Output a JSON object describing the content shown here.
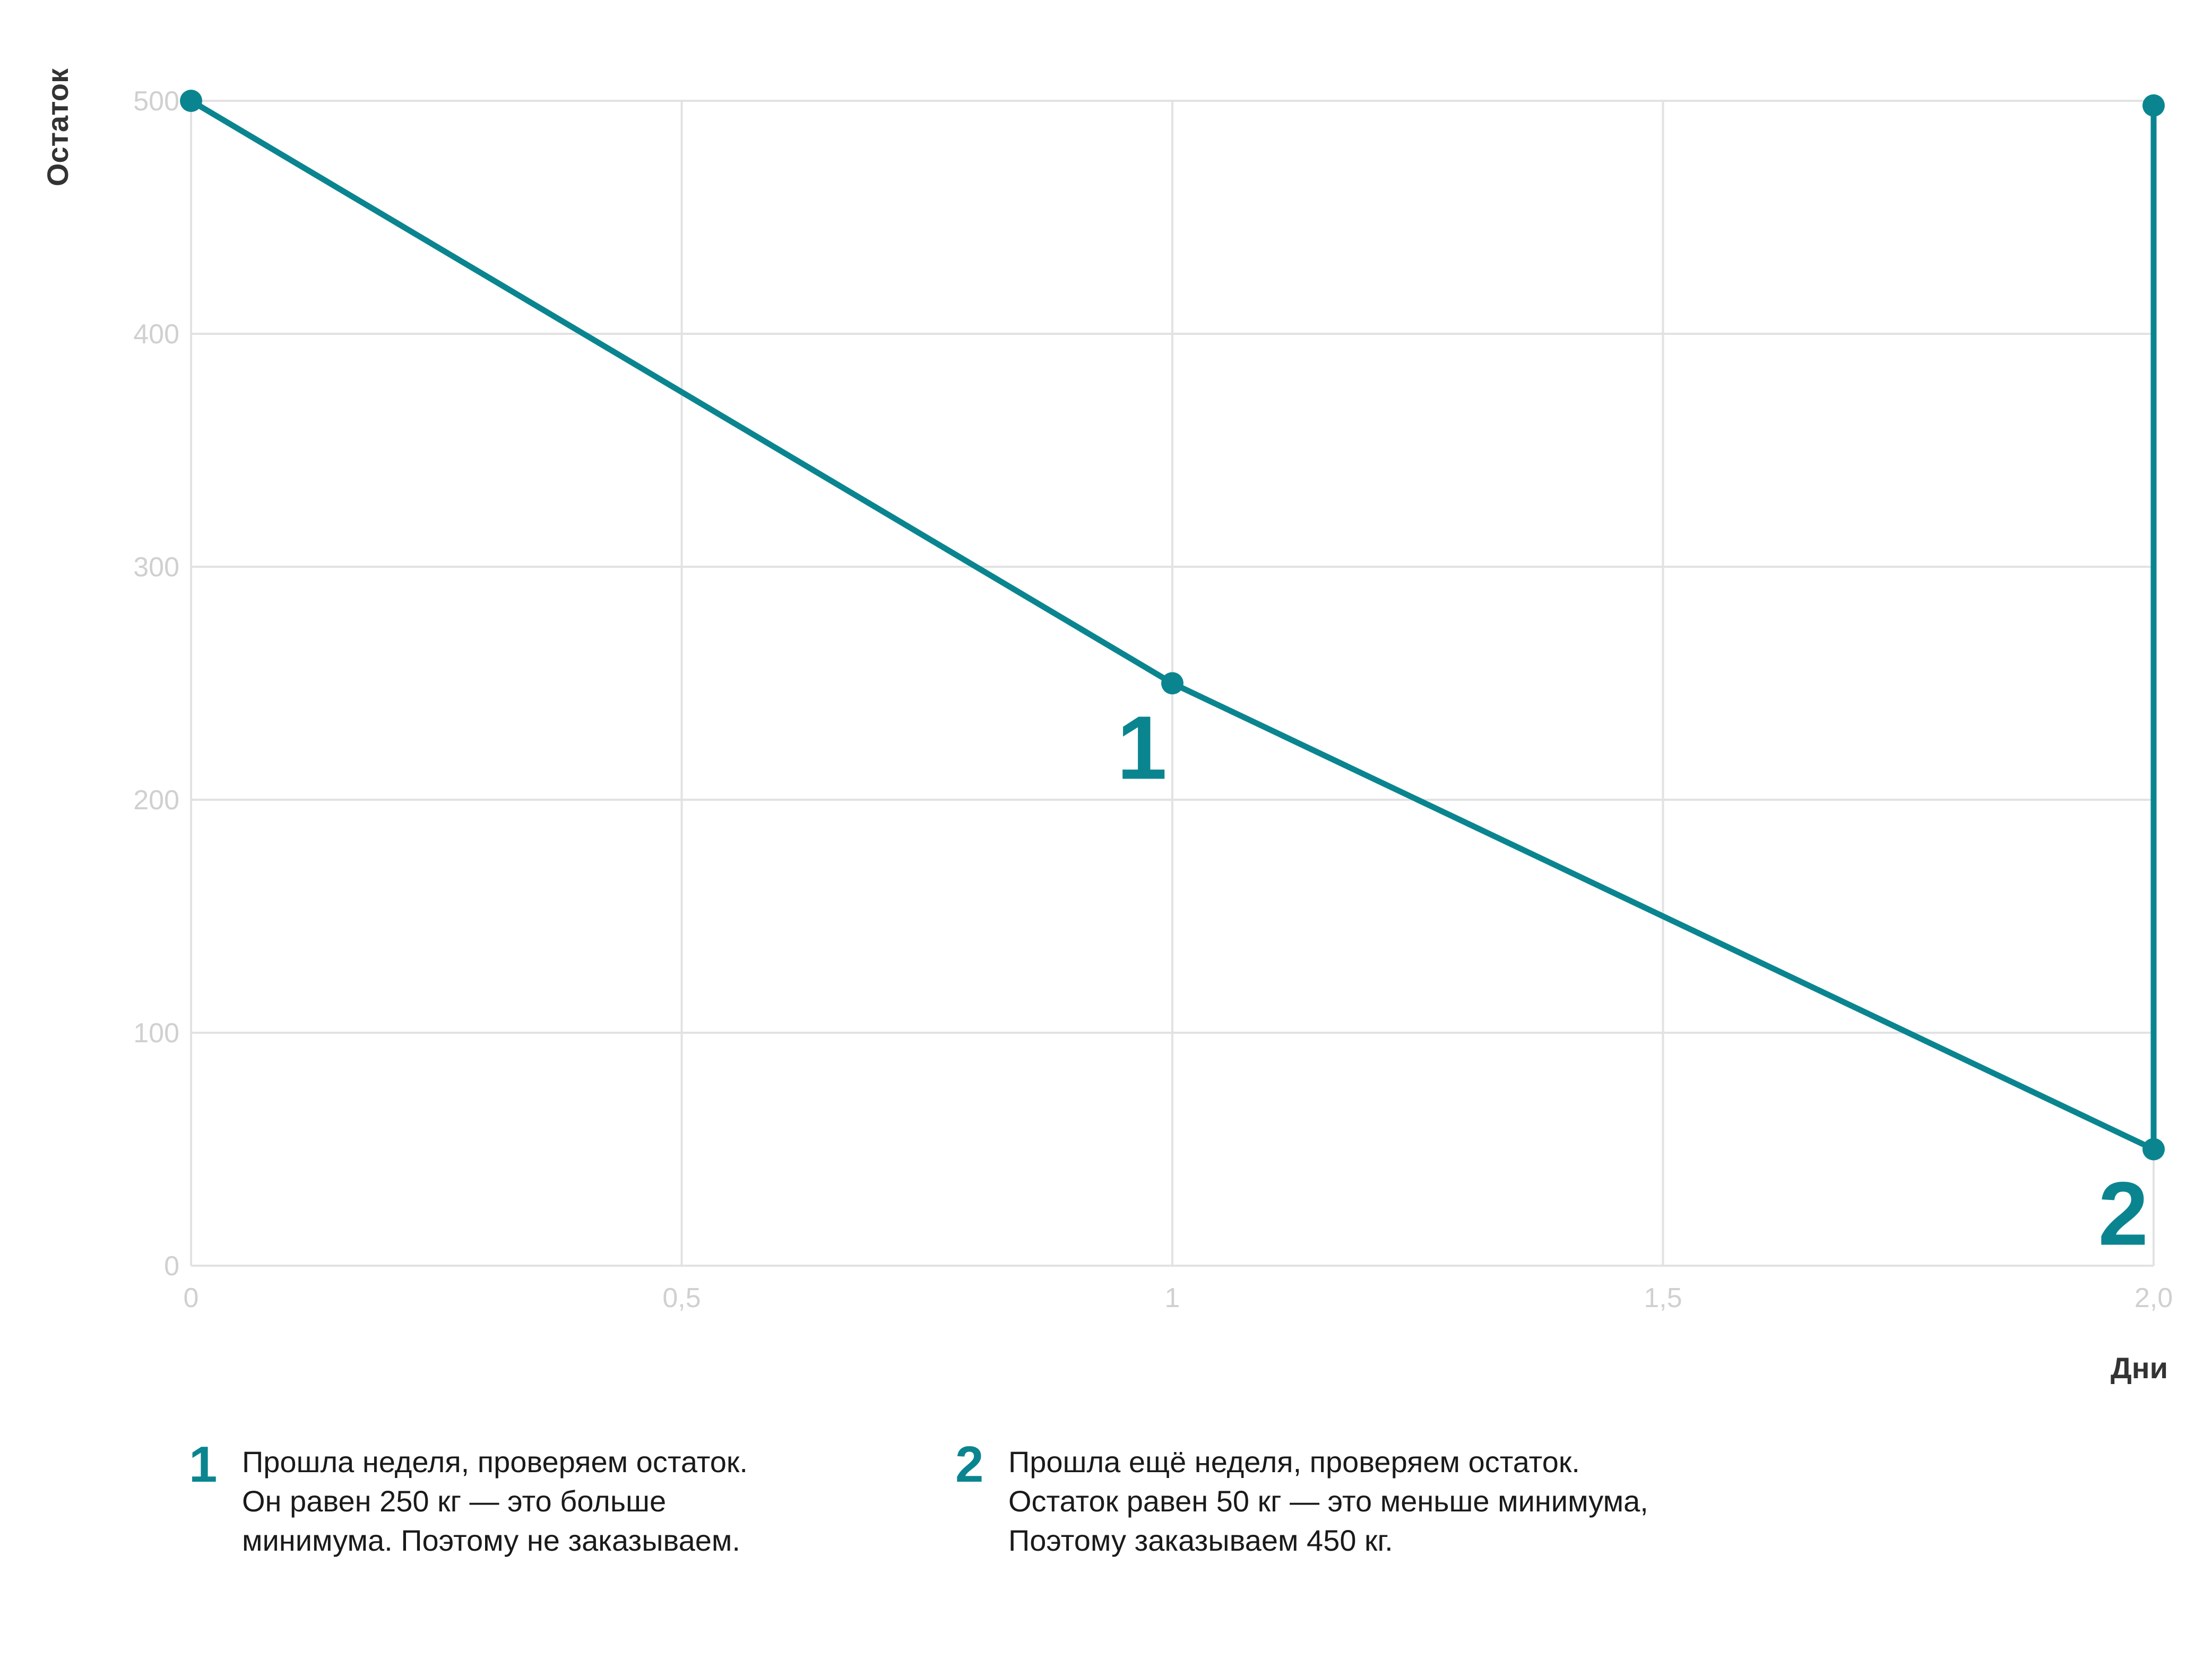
{
  "colors": {
    "accent": "#0a8590",
    "grid": "#e2e2e2",
    "tick": "#d0d0d0",
    "axis_title": "#333333"
  },
  "chart_data": {
    "type": "line",
    "xlabel": "Дни",
    "ylabel": "Остаток",
    "xlim": [
      0,
      2.0
    ],
    "ylim": [
      0,
      500
    ],
    "x_ticks": [
      0,
      0.5,
      1,
      1.5,
      2.0
    ],
    "x_tick_labels": [
      "0",
      "0,5",
      "1",
      "1,5",
      "2,0"
    ],
    "y_ticks": [
      0,
      100,
      200,
      300,
      400,
      500
    ],
    "y_tick_labels": [
      "0",
      "100",
      "200",
      "300",
      "400",
      "500"
    ],
    "grid": true,
    "series": [
      {
        "points": [
          {
            "x": 0,
            "y": 500
          },
          {
            "x": 1,
            "y": 250
          },
          {
            "x": 2,
            "y": 50
          },
          {
            "x": 2,
            "y": 498
          }
        ]
      }
    ],
    "annotations": [
      {
        "label": "1",
        "x": 1,
        "y": 250
      },
      {
        "label": "2",
        "x": 2,
        "y": 50
      }
    ]
  },
  "notes": [
    {
      "num": "1",
      "lines": [
        "Прошла неделя, проверяем остаток.",
        "Он равен 250 кг — это больше",
        "минимума. Поэтому не заказываем."
      ]
    },
    {
      "num": "2",
      "lines": [
        "Прошла ещё неделя, проверяем остаток.",
        "Остаток равен 50 кг — это меньше минимума,",
        "Поэтому заказываем 450 кг."
      ]
    }
  ]
}
